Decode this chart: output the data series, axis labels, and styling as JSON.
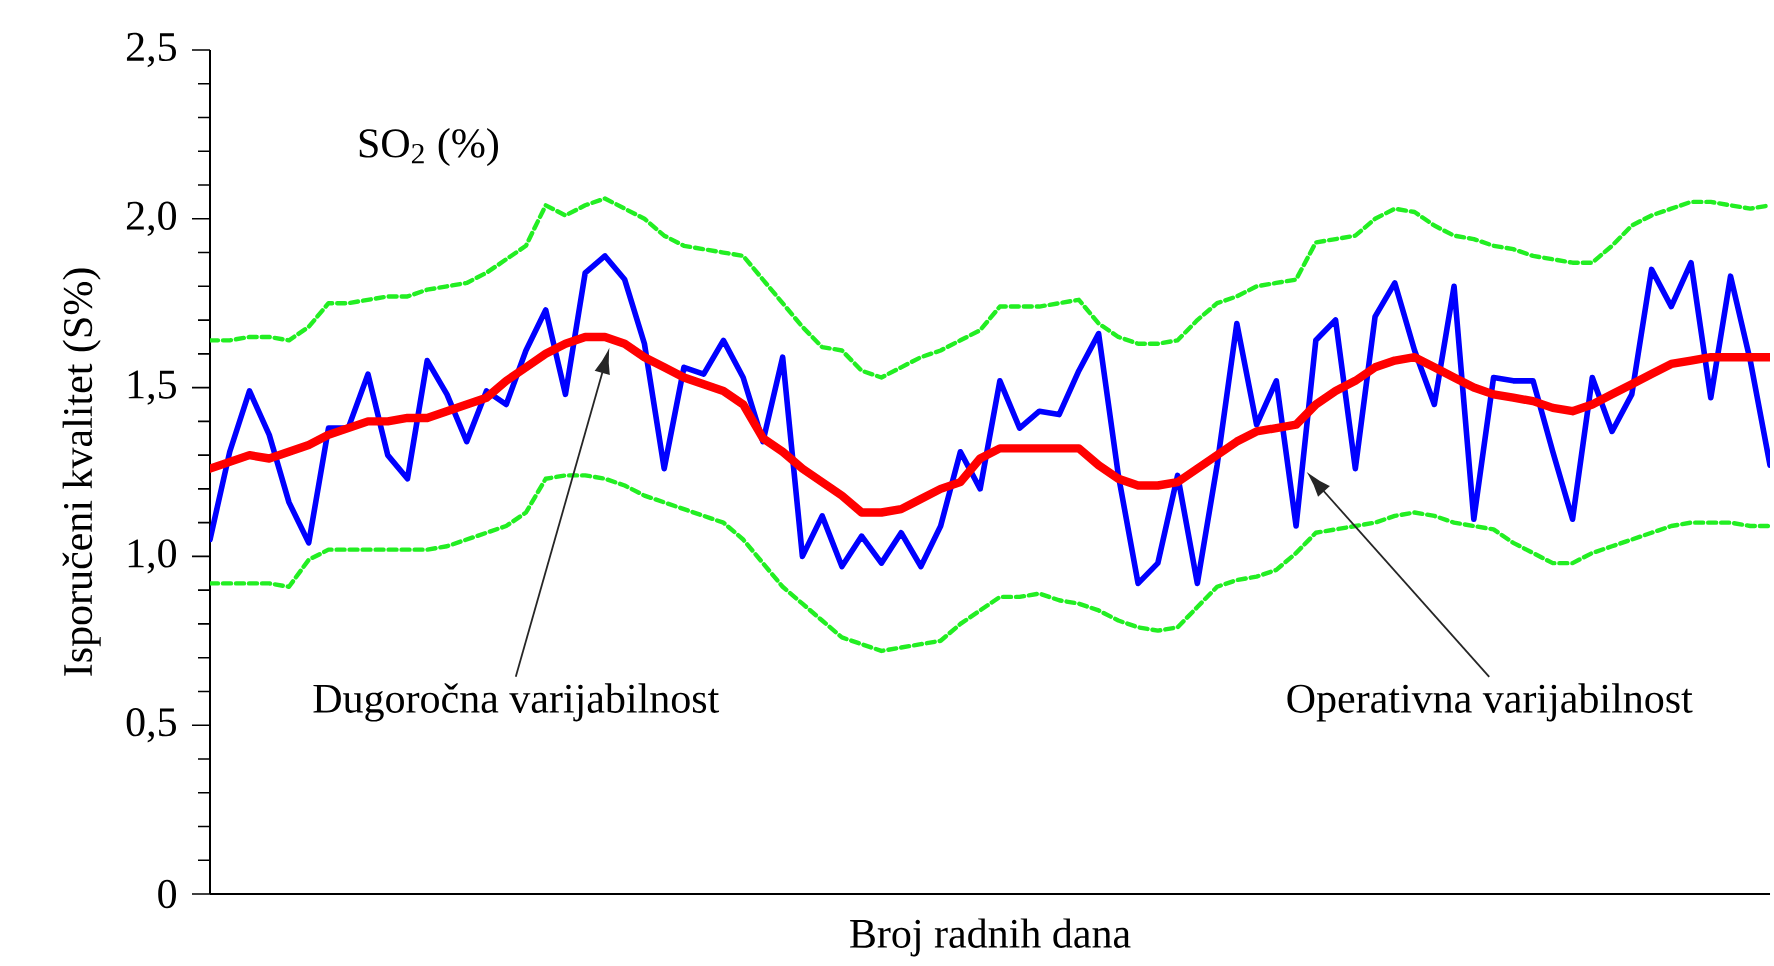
{
  "chart_data": {
    "type": "line",
    "xlabel": "Broj radnih dana",
    "ylabel": "Isporučeni kvalitet (S%)",
    "ylim": [
      0,
      2.5
    ],
    "yticks": [
      0,
      {
        "value": 0.5,
        "label": "0,5"
      },
      {
        "value": 1.0,
        "label": "1,0"
      },
      {
        "value": 1.5,
        "label": "1,5"
      },
      {
        "value": 2.0,
        "label": "2,0"
      },
      {
        "value": 2.5,
        "label": "2,5"
      }
    ],
    "tick_labels": "y",
    "annotations": [
      "SO$_{2}$ (%)",
      "Dugoročna varijabilnost",
      "Operativna varijabilnost"
    ],
    "categories": [
      null,
      null,
      null,
      null,
      null,
      null,
      null,
      null,
      null,
      null,
      null,
      null,
      null,
      null,
      null,
      null,
      null,
      null,
      null,
      null,
      null,
      null,
      null,
      null,
      null,
      null,
      null,
      null,
      null,
      null,
      null,
      null,
      null,
      null,
      null,
      null,
      null,
      null,
      null,
      null,
      null,
      null,
      null,
      null,
      null,
      null,
      null,
      null,
      null,
      null,
      null,
      null,
      null,
      null,
      null,
      null,
      null,
      null,
      null,
      null,
      null,
      null,
      null,
      null,
      null,
      null,
      null,
      null,
      null,
      null,
      null,
      null,
      null,
      null,
      null,
      null,
      null,
      null,
      null,
      null
    ],
    "series": [
      {
        "color": "#22ee22",
        "line_style": "dashed",
        "values": [
          1.64,
          1.64,
          1.65,
          1.65,
          1.64,
          1.68,
          1.75,
          1.75,
          1.76,
          1.77,
          1.77,
          1.79,
          1.8,
          1.81,
          1.84,
          1.88,
          1.92,
          2.04,
          2.01,
          2.04,
          2.06,
          2.03,
          2.0,
          1.95,
          1.92,
          1.91,
          1.9,
          1.89,
          1.82,
          1.75,
          1.68,
          1.62,
          1.61,
          1.55,
          1.53,
          1.56,
          1.59,
          1.61,
          1.64,
          1.67,
          1.74,
          1.74,
          1.74,
          1.75,
          1.76,
          1.69,
          1.65,
          1.63,
          1.63,
          1.64,
          1.7,
          1.75,
          1.77,
          1.8,
          1.81,
          1.82,
          1.93,
          1.94,
          1.95,
          2.0,
          2.03,
          2.02,
          1.98,
          1.95,
          1.94,
          1.92,
          1.91,
          1.89,
          1.88,
          1.87,
          1.87,
          1.92,
          1.98,
          2.01,
          2.03,
          2.05,
          2.05,
          2.04,
          2.03,
          2.04
        ]
      },
      {
        "color": "#22ee22",
        "line_style": "dashed",
        "values": [
          0.92,
          0.92,
          0.92,
          0.92,
          0.91,
          0.99,
          1.02,
          1.02,
          1.02,
          1.02,
          1.02,
          1.02,
          1.03,
          1.05,
          1.07,
          1.09,
          1.13,
          1.23,
          1.24,
          1.24,
          1.23,
          1.21,
          1.18,
          1.16,
          1.14,
          1.12,
          1.1,
          1.05,
          0.98,
          0.91,
          0.86,
          0.81,
          0.76,
          0.74,
          0.72,
          0.73,
          0.74,
          0.75,
          0.8,
          0.84,
          0.88,
          0.88,
          0.89,
          0.87,
          0.86,
          0.84,
          0.81,
          0.79,
          0.78,
          0.79,
          0.85,
          0.91,
          0.93,
          0.94,
          0.96,
          1.01,
          1.07,
          1.08,
          1.09,
          1.1,
          1.12,
          1.13,
          1.12,
          1.1,
          1.09,
          1.08,
          1.04,
          1.01,
          0.98,
          0.98,
          1.01,
          1.03,
          1.05,
          1.07,
          1.09,
          1.1,
          1.1,
          1.1,
          1.09,
          1.09
        ]
      },
      {
        "color": "#0000ff",
        "line_style": "solid",
        "values": [
          1.05,
          1.31,
          1.49,
          1.36,
          1.16,
          1.04,
          1.38,
          1.38,
          1.54,
          1.3,
          1.23,
          1.58,
          1.48,
          1.34,
          1.49,
          1.45,
          1.61,
          1.73,
          1.48,
          1.84,
          1.89,
          1.82,
          1.63,
          1.26,
          1.56,
          1.54,
          1.64,
          1.53,
          1.34,
          1.59,
          1.0,
          1.12,
          0.97,
          1.06,
          0.98,
          1.07,
          0.97,
          1.09,
          1.31,
          1.2,
          1.52,
          1.38,
          1.43,
          1.42,
          1.55,
          1.66,
          1.24,
          0.92,
          0.98,
          1.24,
          0.92,
          1.27,
          1.69,
          1.39,
          1.52,
          1.09,
          1.64,
          1.7,
          1.26,
          1.71,
          1.81,
          1.61,
          1.45,
          1.8,
          1.11,
          1.53,
          1.52,
          1.52,
          1.31,
          1.11,
          1.53,
          1.37,
          1.48,
          1.85,
          1.74,
          1.87,
          1.47,
          1.83,
          1.58,
          1.27
        ]
      },
      {
        "color": "#ff0000",
        "line_style": "solid",
        "values": [
          1.26,
          1.28,
          1.3,
          1.29,
          1.31,
          1.33,
          1.36,
          1.38,
          1.4,
          1.4,
          1.41,
          1.41,
          1.43,
          1.45,
          1.47,
          1.52,
          1.56,
          1.6,
          1.63,
          1.65,
          1.65,
          1.63,
          1.59,
          1.56,
          1.53,
          1.51,
          1.49,
          1.45,
          1.35,
          1.31,
          1.26,
          1.22,
          1.18,
          1.13,
          1.13,
          1.14,
          1.17,
          1.2,
          1.22,
          1.29,
          1.32,
          1.32,
          1.32,
          1.32,
          1.32,
          1.27,
          1.23,
          1.21,
          1.21,
          1.22,
          1.26,
          1.3,
          1.34,
          1.37,
          1.38,
          1.39,
          1.45,
          1.49,
          1.52,
          1.56,
          1.58,
          1.59,
          1.56,
          1.53,
          1.5,
          1.48,
          1.47,
          1.46,
          1.44,
          1.43,
          1.45,
          1.48,
          1.51,
          1.54,
          1.57,
          1.58,
          1.59,
          1.59,
          1.59,
          1.59
        ]
      }
    ]
  }
}
